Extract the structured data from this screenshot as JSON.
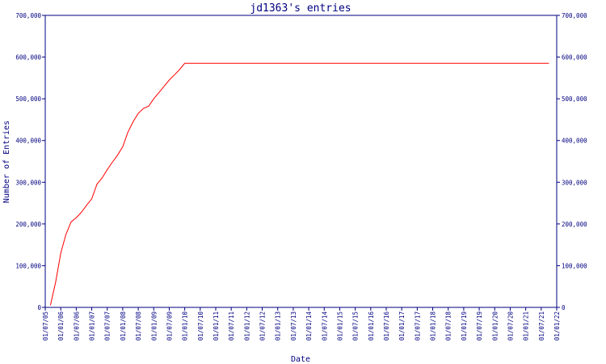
{
  "chart_data": {
    "type": "line",
    "title": "jd1363's entries",
    "xlabel": "Date",
    "ylabel": "Number of Entries",
    "ylim": [
      0,
      700000
    ],
    "y_ticks": [
      0,
      100000,
      200000,
      300000,
      400000,
      500000,
      600000,
      700000
    ],
    "y_tick_labels": [
      "0",
      "100,000",
      "200,000",
      "300,000",
      "400,000",
      "500,000",
      "600,000",
      "700,000"
    ],
    "x_tick_labels": [
      "01/07/05",
      "01/01/06",
      "01/07/06",
      "01/01/07",
      "01/07/07",
      "01/01/08",
      "01/07/08",
      "01/01/09",
      "01/07/09",
      "01/01/10",
      "01/07/10",
      "01/01/11",
      "01/07/11",
      "01/01/12",
      "01/07/12",
      "01/01/13",
      "01/07/13",
      "01/01/14",
      "01/07/14",
      "01/01/15",
      "01/07/15",
      "01/01/16",
      "01/07/16",
      "01/01/17",
      "01/07/17",
      "01/01/18",
      "01/07/18",
      "01/01/19",
      "01/07/19",
      "01/01/20",
      "01/07/20",
      "01/01/21",
      "01/07/21",
      "01/01/22"
    ],
    "grid": false,
    "colors": {
      "line": "#ff0000",
      "axis": "#000080",
      "text": "#000080",
      "background": "#ffffff"
    },
    "series": [
      {
        "x": [
          "2005-09",
          "2005-11",
          "2006-01",
          "2006-03",
          "2006-05",
          "2006-07",
          "2006-09",
          "2006-11",
          "2007-01",
          "2007-03",
          "2007-05",
          "2007-07",
          "2007-09",
          "2007-11",
          "2008-01",
          "2008-03",
          "2008-05",
          "2008-07",
          "2008-09",
          "2008-11",
          "2009-01",
          "2009-03",
          "2009-05",
          "2009-07",
          "2009-09",
          "2009-11",
          "2010-01",
          "2010-07",
          "2011-01",
          "2011-07",
          "2012-01",
          "2013-01",
          "2014-01",
          "2015-01",
          "2016-01",
          "2017-01",
          "2018-01",
          "2019-01",
          "2020-01",
          "2021-01",
          "2021-10"
        ],
        "y": [
          5000,
          60000,
          130000,
          175000,
          205000,
          215000,
          228000,
          245000,
          260000,
          295000,
          310000,
          330000,
          348000,
          365000,
          385000,
          420000,
          445000,
          465000,
          477000,
          482000,
          500000,
          515000,
          530000,
          545000,
          557000,
          570000,
          585000,
          585000,
          585000,
          585000,
          585000,
          585000,
          585000,
          585000,
          585000,
          585000,
          585000,
          585000,
          585000,
          585000,
          585000
        ]
      }
    ]
  }
}
